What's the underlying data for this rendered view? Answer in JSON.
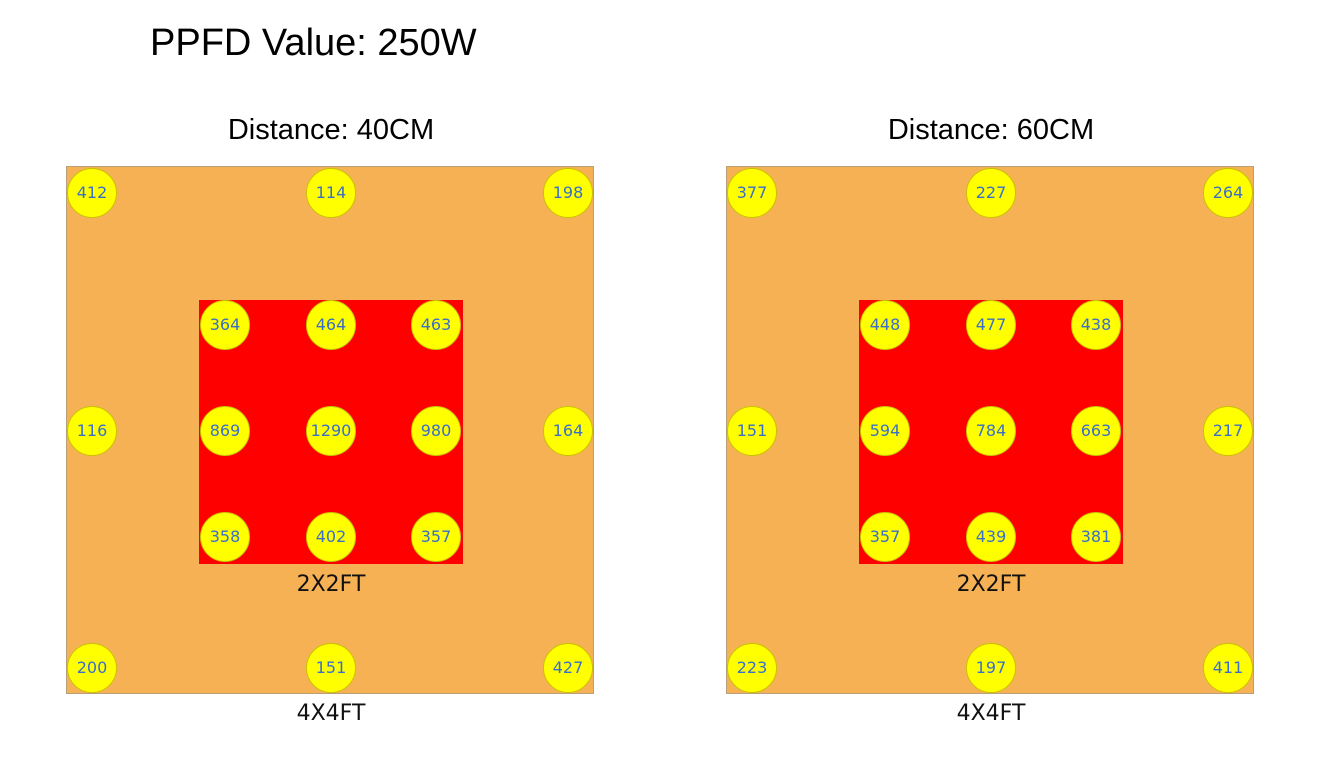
{
  "title": "PPFD Value: 250W",
  "panels": [
    {
      "heading": "Distance: 40CM",
      "inner_label": "2X2FT",
      "outer_label": "4X4FT",
      "readings": [
        "412",
        "114",
        "198",
        "364",
        "464",
        "463",
        "116",
        "869",
        "1290",
        "980",
        "164",
        "358",
        "402",
        "357",
        "200",
        "151",
        "427"
      ]
    },
    {
      "heading": "Distance: 60CM",
      "inner_label": "2X2FT",
      "outer_label": "4X4FT",
      "readings": [
        "377",
        "227",
        "264",
        "448",
        "477",
        "438",
        "151",
        "594",
        "784",
        "663",
        "217",
        "357",
        "439",
        "381",
        "223",
        "197",
        "411"
      ]
    }
  ],
  "colors": {
    "outer_area": "#f7b155",
    "inner_area": "#ff0000",
    "reading_dot": "#ffff00",
    "reading_text": "#3a6fc7"
  }
}
